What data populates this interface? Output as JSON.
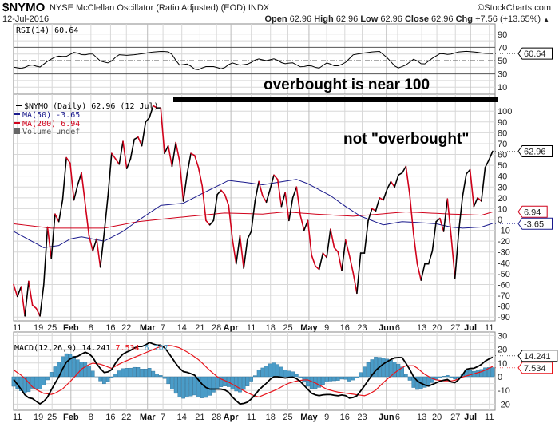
{
  "header": {
    "symbol": "$NYMO",
    "description": "NYSE McClellan Oscillator (Ratio Adjusted) (EOD)",
    "exchange": "INDX",
    "copyright": "©StockCharts.com",
    "date": "12-Jul-2016",
    "open_label": "Open",
    "open": "62.96",
    "high_label": "High",
    "high": "62.96",
    "low_label": "Low",
    "low": "62.96",
    "close_label": "Close",
    "close": "62.96",
    "chg_label": "Chg",
    "chg": "+7.56 (+13.65%)",
    "chg_arrow": "▲"
  },
  "annotations": {
    "overbought_note": "overbought is near 100",
    "not_overbought_note": "not \"overbought\""
  },
  "colors": {
    "price_up": "#000000",
    "price_down": "#d0021b",
    "ma50": "#1a1a8c",
    "ma200": "#d0021b",
    "macd": "#000000",
    "signal": "#e8141b",
    "histogram": "#4a9cc8",
    "grid": "#d8d8d8"
  },
  "chart_data": [
    {
      "type": "line",
      "panel": "RSI",
      "legend": "RSI(14) 60.64",
      "last_value_tag": "60.64",
      "ylim": [
        0,
        100
      ],
      "yticks": [
        90,
        70,
        50,
        30,
        10
      ],
      "reference_lines": [
        70,
        50,
        30
      ],
      "values": [
        40,
        38,
        44,
        40,
        50,
        57,
        56,
        63,
        58,
        61,
        49,
        46,
        59,
        58,
        59,
        61,
        63,
        64,
        63,
        43,
        45,
        35,
        41,
        41,
        37,
        47,
        43,
        45,
        53,
        50,
        53,
        45,
        47,
        40,
        43,
        38,
        47,
        41,
        46,
        59,
        61,
        63,
        64,
        53,
        38,
        43,
        53,
        43,
        53,
        61,
        59,
        63,
        64,
        63,
        61,
        60.64
      ]
    },
    {
      "type": "line",
      "panel": "main",
      "legend": [
        {
          "label": "$NYMO (Daily) 62.96 (12 Jul)",
          "color": "#000000"
        },
        {
          "label": "MA(50) -3.65",
          "color": "#1a1a8c"
        },
        {
          "label": "MA(200) 6.94",
          "color": "#d0021b"
        },
        {
          "label": "Volume undef",
          "color": "#666666"
        }
      ],
      "ylim": [
        -95,
        108
      ],
      "yticks": [
        100,
        90,
        80,
        70,
        60,
        50,
        40,
        30,
        20,
        10,
        0,
        -10,
        -20,
        -30,
        -40,
        -50,
        -60,
        -70,
        -80,
        -90
      ],
      "value_tags": [
        {
          "text": "62.96",
          "value": 62.96,
          "color": "#000000"
        },
        {
          "text": "6.94",
          "value": 6.94,
          "color": "#d0021b"
        },
        {
          "text": "-3.65",
          "value": -3.65,
          "color": "#1a1a8c"
        }
      ],
      "nymo": [
        -60,
        -71,
        -62,
        -89,
        -57,
        -79,
        -82,
        -89,
        -60,
        -7,
        -36,
        5,
        -2,
        18,
        57,
        52,
        18,
        32,
        43,
        14,
        -15,
        -29,
        -18,
        -44,
        -13,
        21,
        61,
        56,
        51,
        72,
        47,
        56,
        74,
        76,
        68,
        90,
        94,
        105,
        103,
        103,
        61,
        68,
        49,
        71,
        54,
        17,
        42,
        61,
        59,
        48,
        31,
        -1,
        -5,
        -1,
        23,
        27,
        23,
        13,
        -18,
        -41,
        -15,
        -45,
        -18,
        -11,
        17,
        35,
        22,
        16,
        28,
        41,
        37,
        12,
        25,
        -1,
        20,
        30,
        4,
        -10,
        -1,
        -33,
        -43,
        -46,
        -31,
        -35,
        -9,
        -26,
        -30,
        -47,
        -19,
        -33,
        -49,
        -68,
        -31,
        -31,
        -1,
        10,
        8,
        20,
        18,
        28,
        35,
        30,
        41,
        43,
        49,
        23,
        -13,
        -41,
        -56,
        -41,
        -41,
        -29,
        -2,
        1,
        -11,
        19,
        -16,
        -54,
        -11,
        21,
        42,
        46,
        12,
        20,
        17,
        48,
        55,
        62.96
      ],
      "ma50": [
        [
          0,
          -11
        ],
        [
          8,
          -26
        ],
        [
          12,
          -24
        ],
        [
          15,
          -18
        ],
        [
          18,
          -16
        ],
        [
          24,
          -20
        ],
        [
          29,
          -11
        ],
        [
          33,
          -1
        ],
        [
          39,
          13
        ],
        [
          45,
          15
        ],
        [
          50,
          24
        ],
        [
          57,
          36
        ],
        [
          62,
          34
        ],
        [
          66,
          32
        ],
        [
          75,
          37
        ],
        [
          78,
          33
        ],
        [
          84,
          22
        ],
        [
          88,
          12
        ],
        [
          92,
          3
        ],
        [
          98,
          -5
        ],
        [
          103,
          -2
        ],
        [
          108,
          -3
        ],
        [
          112,
          -4
        ],
        [
          116,
          -7
        ],
        [
          119,
          -8
        ],
        [
          124,
          -7
        ],
        [
          127,
          -3.65
        ]
      ],
      "ma200": [
        [
          0,
          -4
        ],
        [
          10,
          -8
        ],
        [
          24,
          -8
        ],
        [
          33,
          -2
        ],
        [
          44,
          2
        ],
        [
          56,
          6
        ],
        [
          66,
          5
        ],
        [
          72,
          7
        ],
        [
          80,
          5
        ],
        [
          90,
          3
        ],
        [
          104,
          7
        ],
        [
          116,
          5
        ],
        [
          124,
          4
        ],
        [
          127,
          6.94
        ]
      ]
    },
    {
      "type": "line",
      "panel": "MACD",
      "legend": {
        "name": "MACD(12,26,9)",
        "macd": "14.241",
        "signal": "7.534",
        "histogram": "6.707"
      },
      "ylim": [
        -25,
        32
      ],
      "yticks": [
        30,
        20,
        10,
        0,
        -10,
        -20
      ],
      "value_tags": [
        {
          "text": "14.241",
          "value": 14.241,
          "color": "#000000"
        },
        {
          "text": "7.534",
          "value": 7.534,
          "color": "#e8141b"
        }
      ],
      "macd": [
        -2,
        -8,
        -15,
        -16,
        -20,
        -17,
        -8,
        0,
        10,
        14,
        15,
        18,
        16,
        8,
        3,
        4,
        12,
        17,
        19,
        22,
        22,
        25,
        23,
        23,
        17,
        10,
        4,
        3,
        1,
        -5,
        -9,
        -9,
        -9,
        -10,
        -16,
        -20,
        -19,
        -15,
        -9,
        -5,
        0,
        0,
        -1,
        0,
        -2,
        -7,
        -12,
        -14,
        -13,
        -13,
        -14,
        -13,
        -16,
        -14,
        -8,
        -1,
        5,
        9,
        12,
        14,
        14,
        7,
        -2,
        -5,
        -7,
        -5,
        -3,
        -2,
        -5,
        -1,
        6,
        6,
        8,
        12,
        14.241
      ],
      "signal": [
        5,
        0,
        -8,
        -12,
        -13,
        -9,
        -2,
        6,
        10,
        9,
        6,
        10,
        13,
        16,
        19,
        22,
        23,
        21,
        17,
        12,
        5,
        -1,
        -4,
        -8,
        -12,
        -15,
        -12,
        -9,
        -5,
        -3,
        -2,
        -5,
        -9,
        -11,
        -12,
        -13,
        -14,
        -10,
        -3,
        3,
        8,
        8,
        2,
        -2,
        -3,
        -3,
        0,
        2,
        4,
        7.534
      ]
    }
  ],
  "x_axis": {
    "ticks": [
      {
        "label": "11",
        "day": 1,
        "bold": false
      },
      {
        "label": "19",
        "day": 6.6,
        "bold": false
      },
      {
        "label": "25",
        "day": 10.2,
        "bold": false
      },
      {
        "label": "Feb",
        "day": 15.2,
        "bold": true
      },
      {
        "label": "8",
        "day": 20.5,
        "bold": false
      },
      {
        "label": "16",
        "day": 25.7,
        "bold": false
      },
      {
        "label": "22",
        "day": 29.9,
        "bold": false
      },
      {
        "label": "Mar",
        "day": 35.5,
        "bold": true
      },
      {
        "label": "7",
        "day": 39.6,
        "bold": false
      },
      {
        "label": "14",
        "day": 44.6,
        "bold": false
      },
      {
        "label": "21",
        "day": 49.4,
        "bold": false
      },
      {
        "label": "28",
        "day": 53.8,
        "bold": false
      },
      {
        "label": "Apr",
        "day": 57.6,
        "bold": true
      },
      {
        "label": "11",
        "day": 63,
        "bold": false
      },
      {
        "label": "18",
        "day": 68.1,
        "bold": false
      },
      {
        "label": "25",
        "day": 72.7,
        "bold": false
      },
      {
        "label": "May",
        "day": 78.3,
        "bold": true
      },
      {
        "label": "9",
        "day": 83,
        "bold": false
      },
      {
        "label": "16",
        "day": 87.8,
        "bold": false
      },
      {
        "label": "23",
        "day": 92.4,
        "bold": false
      },
      {
        "label": "Jun",
        "day": 98.8,
        "bold": true
      },
      {
        "label": "6",
        "day": 101.8,
        "bold": false
      },
      {
        "label": "13",
        "day": 108.2,
        "bold": false
      },
      {
        "label": "20",
        "day": 112.2,
        "bold": false
      },
      {
        "label": "27",
        "day": 117.1,
        "bold": false
      },
      {
        "label": "Jul",
        "day": 121.1,
        "bold": true
      },
      {
        "label": "11",
        "day": 126.1,
        "bold": false
      }
    ]
  }
}
